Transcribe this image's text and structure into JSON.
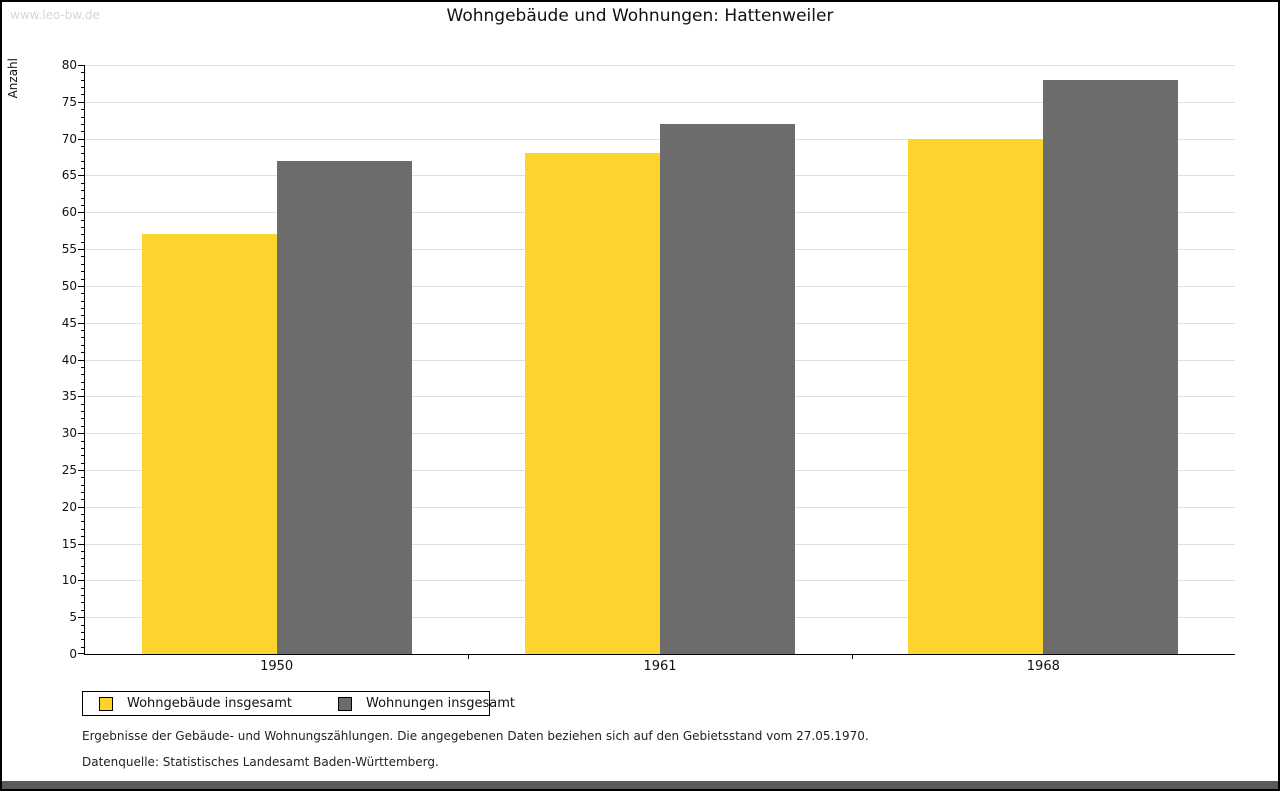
{
  "page": {
    "watermark": "www.leo-bw.de",
    "title": "Wohngebäude und Wohnungen: Hattenweiler"
  },
  "chart_data": {
    "type": "bar",
    "title": "Wohngebäude und Wohnungen: Hattenweiler",
    "categories": [
      "1950",
      "1961",
      "1968"
    ],
    "series": [
      {
        "name": "Wohngebäude insgesamt",
        "color": "#fdd42d",
        "values": [
          57,
          68,
          70
        ]
      },
      {
        "name": "Wohnungen insgesamt",
        "color": "#6c6c6c",
        "values": [
          67,
          72,
          78
        ]
      }
    ],
    "xlabel": "",
    "ylabel": "Anzahl",
    "ylim": [
      0,
      80
    ],
    "y_major_step": 5,
    "y_minor_step": 1,
    "grid": true,
    "gridline_color": "#e0e0e0",
    "legend_position": "bottom-left"
  },
  "footer": {
    "note": "Ergebnisse der Gebäude- und Wohnungszählungen. Die angegebenen Daten beziehen sich auf den Gebietsstand vom 27.05.1970.",
    "source": "Datenquelle: Statistisches Landesamt Baden-Württemberg."
  }
}
